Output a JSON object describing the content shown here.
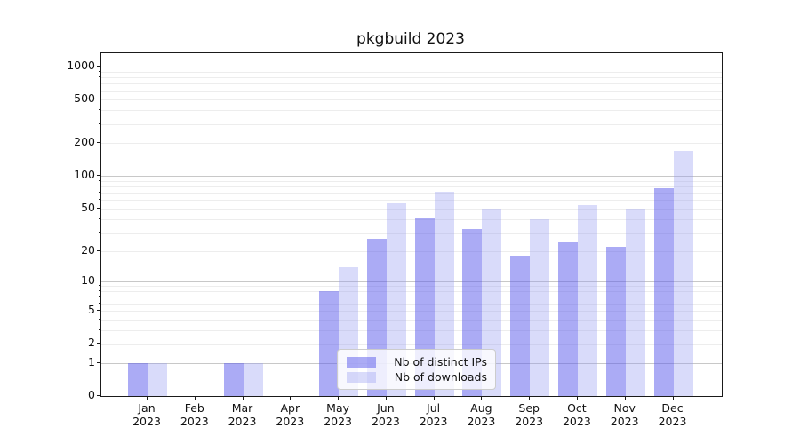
{
  "title": "pkgbuild 2023",
  "chart_data": {
    "type": "bar",
    "title": "pkgbuild 2023",
    "categories": [
      "Jan",
      "Feb",
      "Mar",
      "Apr",
      "May",
      "Jun",
      "Jul",
      "Aug",
      "Sep",
      "Oct",
      "Nov",
      "Dec"
    ],
    "year": "2023",
    "series": [
      {
        "name": "Nb of distinct IPs",
        "color": "rgba(88,88,235,0.5)",
        "values": [
          1,
          0,
          1,
          0,
          8,
          26,
          41,
          32,
          18,
          24,
          22,
          78
        ]
      },
      {
        "name": "Nb of downloads",
        "color": "rgba(146,152,241,0.35)",
        "values": [
          1,
          0,
          1,
          0,
          14,
          56,
          72,
          50,
          40,
          54,
          50,
          170
        ]
      }
    ],
    "xlabel": "",
    "ylabel": "",
    "yscale": "log1p",
    "yticks": [
      0,
      1,
      2,
      5,
      10,
      20,
      50,
      100,
      200,
      500,
      1000
    ],
    "ylim": [
      0,
      1330
    ],
    "grid": {
      "on": true,
      "major_values": [
        1,
        10,
        100,
        1000
      ]
    },
    "legend": {
      "position": "lower-center-inside",
      "entries": [
        "Nb of distinct IPs",
        "Nb of downloads"
      ]
    }
  },
  "colors": {
    "series1_fill": "rgba(88,88,235,0.5)",
    "series2_fill": "rgba(146,152,241,0.35)",
    "grid_major": "#c8c8c8",
    "grid_minor": "#ededed",
    "spine": "#1a1a1a",
    "text": "#111111",
    "legend_border": "#cccccc",
    "legend_background": "rgba(255,255,255,0.8)",
    "background": "#ffffff"
  }
}
